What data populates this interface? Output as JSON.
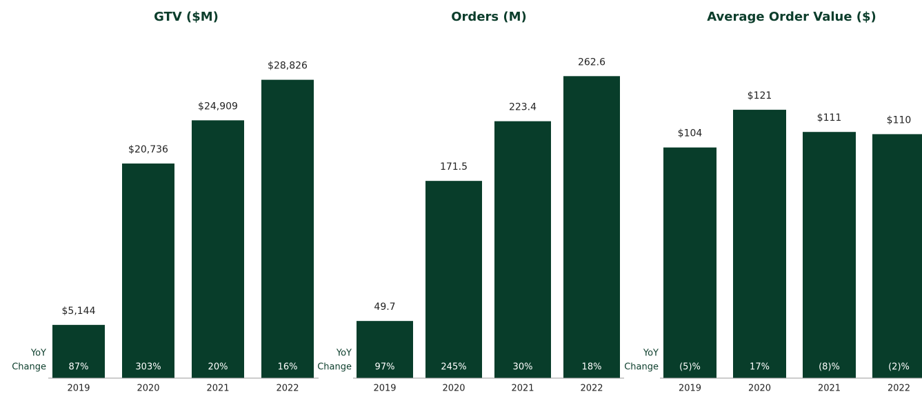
{
  "chart_data": [
    {
      "type": "bar",
      "title": "GTV ($M)",
      "categories": [
        "2019",
        "2020",
        "2021",
        "2022"
      ],
      "values": [
        5144,
        20736,
        24909,
        28826
      ],
      "value_labels": [
        "$5,144",
        "$20,736",
        "$24,909",
        "$28,826"
      ],
      "yoy_label": [
        "YoY",
        "Change"
      ],
      "yoy_change": [
        "87%",
        "303%",
        "20%",
        "16%"
      ],
      "color": "#083d2a",
      "ylim": [
        0,
        30000
      ]
    },
    {
      "type": "bar",
      "title": "Orders (M)",
      "categories": [
        "2019",
        "2020",
        "2021",
        "2022"
      ],
      "values": [
        49.7,
        171.5,
        223.4,
        262.6
      ],
      "yoy_label": [
        "YoY",
        "Change"
      ],
      "yoy_change": [
        "97%",
        "245%",
        "30%",
        "18%"
      ],
      "color": "#083d2a",
      "ylim": [
        0,
        270
      ]
    },
    {
      "type": "bar",
      "title": "Average Order Value ($)",
      "categories": [
        "2019",
        "2020",
        "2021",
        "2022"
      ],
      "values": [
        104,
        121,
        111,
        110
      ],
      "value_labels": [
        "$104",
        "$121",
        "$111",
        "$110"
      ],
      "yoy_label": [
        "YoY",
        "Change"
      ],
      "yoy_change": [
        "(5)%",
        "17%",
        "(8)%",
        "(2)%"
      ],
      "color": "#083d2a",
      "ylim": [
        0,
        140
      ]
    }
  ]
}
